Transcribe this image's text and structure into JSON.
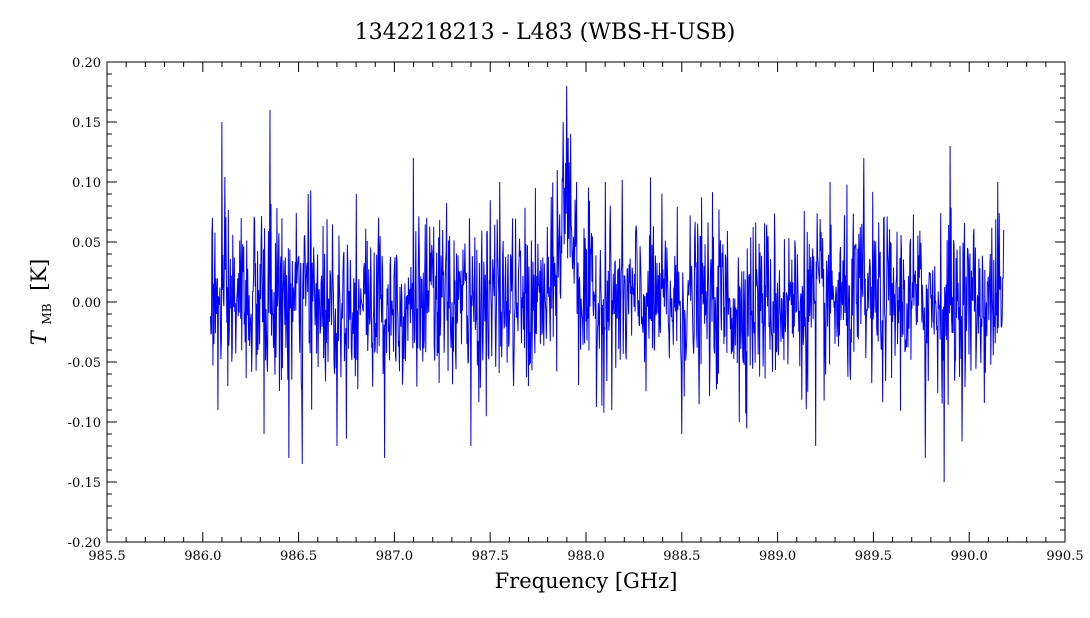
{
  "chart_data": {
    "type": "line",
    "title": "1342218213 - L483 (WBS-H-USB)",
    "xlabel": "Frequency [GHz]",
    "ylabel_main": "T",
    "ylabel_sub": "MB",
    "ylabel_unit": "[K]",
    "xlim": [
      985.5,
      990.5
    ],
    "ylim": [
      -0.2,
      0.2
    ],
    "x_ticks": [
      "985.5",
      "986.0",
      "986.5",
      "987.0",
      "987.5",
      "988.0",
      "988.5",
      "989.0",
      "989.5",
      "990.0",
      "990.5"
    ],
    "y_ticks": [
      "0.20",
      "0.15",
      "0.10",
      "0.05",
      "0.00",
      "-0.05",
      "-0.10",
      "-0.15",
      "-0.20"
    ],
    "series": [
      {
        "color": "#0000ff",
        "x_start": 986.04,
        "x_end": 990.18,
        "noise_rms": 0.035,
        "line_center": 987.9,
        "line_peak": 0.18,
        "points": [
          [
            986.05,
            0.07
          ],
          [
            986.08,
            -0.09
          ],
          [
            986.1,
            0.15
          ],
          [
            986.13,
            -0.07
          ],
          [
            986.2,
            0.07
          ],
          [
            986.32,
            -0.11
          ],
          [
            986.35,
            0.16
          ],
          [
            986.45,
            -0.13
          ],
          [
            986.52,
            -0.135
          ],
          [
            986.55,
            0.09
          ],
          [
            986.7,
            -0.12
          ],
          [
            986.8,
            0.09
          ],
          [
            986.95,
            -0.13
          ],
          [
            987.1,
            0.12
          ],
          [
            987.4,
            -0.12
          ],
          [
            987.55,
            0.1
          ],
          [
            987.7,
            -0.07
          ],
          [
            987.85,
            0.11
          ],
          [
            987.88,
            0.15
          ],
          [
            987.9,
            0.18
          ],
          [
            987.92,
            0.14
          ],
          [
            987.95,
            0.1
          ],
          [
            988.1,
            0.1
          ],
          [
            988.5,
            -0.11
          ],
          [
            988.8,
            -0.1
          ],
          [
            989.2,
            -0.12
          ],
          [
            989.45,
            0.12
          ],
          [
            989.77,
            -0.13
          ],
          [
            989.87,
            -0.15
          ],
          [
            989.9,
            0.13
          ],
          [
            990.15,
            0.1
          ],
          [
            990.18,
            0.06
          ]
        ]
      }
    ],
    "grid": false,
    "legend": "none"
  }
}
